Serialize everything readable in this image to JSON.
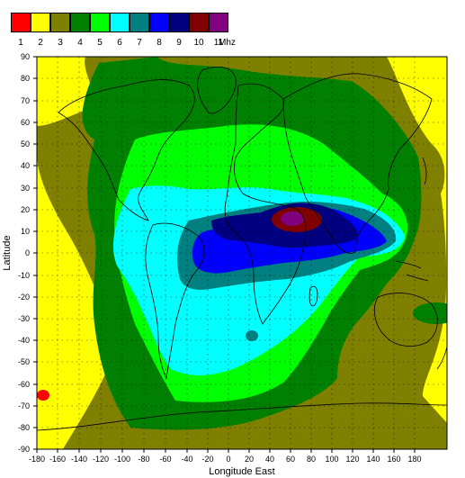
{
  "legend": {
    "items": [
      {
        "label": "1",
        "color": "#ff0000"
      },
      {
        "label": "2",
        "color": "#ffff00"
      },
      {
        "label": "3",
        "color": "#808000"
      },
      {
        "label": "4",
        "color": "#008000"
      },
      {
        "label": "5",
        "color": "#00ff00"
      },
      {
        "label": "6",
        "color": "#00ffff"
      },
      {
        "label": "7",
        "color": "#008080"
      },
      {
        "label": "8",
        "color": "#0000ff"
      },
      {
        "label": "9",
        "color": "#000080"
      },
      {
        "label": "10",
        "color": "#800000"
      },
      {
        "label": "11",
        "color": "#800080"
      }
    ],
    "unit": "Mhz"
  },
  "axes": {
    "x_title": "Longitude East",
    "y_title": "Latitude",
    "x_ticks": [
      "-180",
      "-160",
      "-140",
      "-120",
      "-100",
      "-80",
      "-60",
      "-40",
      "-20",
      "0",
      "20",
      "40",
      "60",
      "80",
      "100",
      "120",
      "140",
      "160",
      "180"
    ],
    "y_ticks": [
      "90",
      "80",
      "70",
      "60",
      "50",
      "40",
      "30",
      "20",
      "10",
      "0",
      "-10",
      "-20",
      "-30",
      "-40",
      "-50",
      "-60",
      "-70",
      "-80",
      "-90"
    ]
  },
  "map": {
    "grid": "dotted",
    "features": [
      "coastlines"
    ],
    "max_region": "over north-east Africa / Arabia"
  }
}
